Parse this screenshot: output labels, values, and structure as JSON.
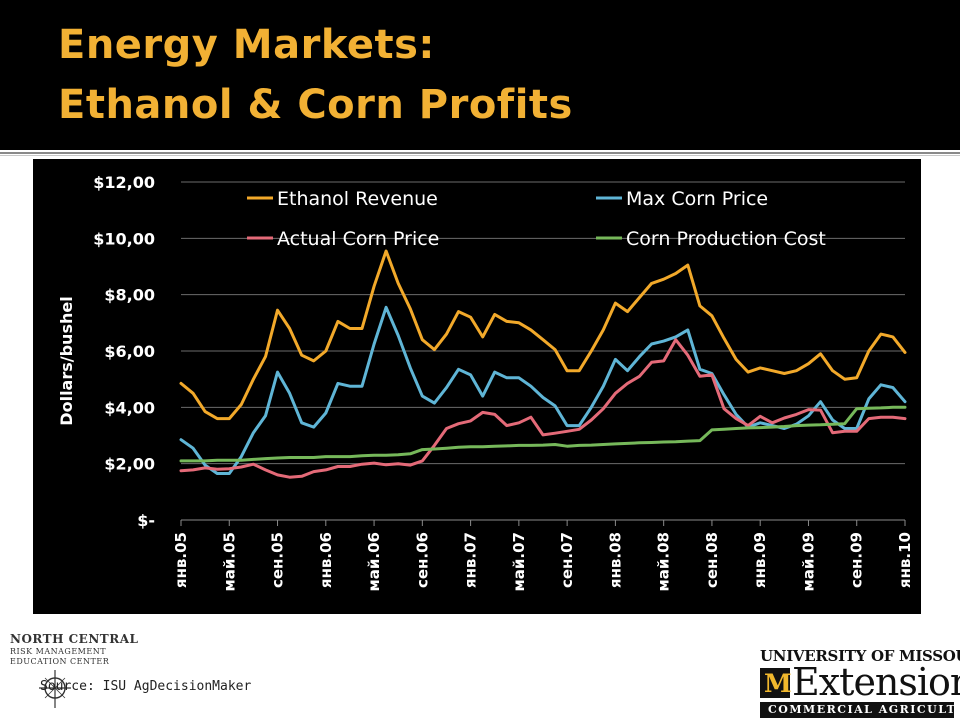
{
  "slide": {
    "title_line1": "Energy Markets:",
    "title_line2": "Ethanol & Corn Profits",
    "source": "Source: ISU AgDecisionMaker",
    "colors": {
      "title": "#f2b134",
      "header_bg": "#000000",
      "plot_bg": "#000000"
    }
  },
  "logos": {
    "ncrme": {
      "line1": "NORTH CENTRAL",
      "line2": "RISK MANAGEMENT",
      "line3": "EDUCATION CENTER"
    },
    "mu": {
      "name": "UNIVERSITY OF MISSOURI",
      "mark": "M",
      "word": "Extension",
      "bar": "COMMERCIAL AGRICULTURE"
    }
  },
  "chart_data": {
    "type": "line",
    "ylabel": "Dollars/bushel",
    "xlabel": "",
    "ylim": [
      0,
      12
    ],
    "yticks": [
      0,
      2,
      4,
      6,
      8,
      10,
      12
    ],
    "ytick_labels": [
      "$-",
      "$2,00",
      "$4,00",
      "$6,00",
      "$8,00",
      "$10,00",
      "$12,00"
    ],
    "x": [
      "янв.05",
      "фев.05",
      "мар.05",
      "апр.05",
      "май.05",
      "июн.05",
      "июл.05",
      "авг.05",
      "сен.05",
      "окт.05",
      "ноя.05",
      "дек.05",
      "янв.06",
      "фев.06",
      "мар.06",
      "апр.06",
      "май.06",
      "июн.06",
      "июл.06",
      "авг.06",
      "сен.06",
      "окт.06",
      "ноя.06",
      "дек.06",
      "янв.07",
      "фев.07",
      "мар.07",
      "апр.07",
      "май.07",
      "июн.07",
      "июл.07",
      "авг.07",
      "сен.07",
      "окт.07",
      "ноя.07",
      "дек.07",
      "янв.08",
      "фев.08",
      "мар.08",
      "апр.08",
      "май.08",
      "июн.08",
      "июл.08",
      "авг.08",
      "сен.08",
      "окт.08",
      "ноя.08",
      "дек.08",
      "янв.09",
      "фев.09",
      "мар.09",
      "апр.09",
      "май.09",
      "июн.09",
      "июл.09",
      "авг.09",
      "сен.09",
      "окт.09",
      "ноя.09",
      "дек.09",
      "янв.10"
    ],
    "xtick_labels": [
      "янв.05",
      "май.05",
      "сен.05",
      "янв.06",
      "май.06",
      "сен.06",
      "янв.07",
      "май.07",
      "сен.07",
      "янв.08",
      "май.08",
      "сен.08",
      "янв.09",
      "май.09",
      "сен.09",
      "янв.10"
    ],
    "legend_position": "top",
    "grid": true,
    "series": [
      {
        "name": "Ethanol Revenue",
        "color": "#f2a92a",
        "values": [
          4.85,
          4.5,
          3.85,
          3.6,
          3.6,
          4.1,
          5.0,
          5.8,
          7.45,
          6.8,
          5.85,
          5.65,
          6.0,
          7.05,
          6.8,
          6.8,
          8.3,
          9.55,
          8.4,
          7.5,
          6.4,
          6.05,
          6.6,
          7.4,
          7.2,
          6.5,
          7.3,
          7.05,
          7.0,
          6.75,
          6.4,
          6.05,
          5.3,
          5.3,
          6.0,
          6.75,
          7.7,
          7.4,
          7.9,
          8.4,
          8.55,
          8.75,
          9.05,
          7.6,
          7.25,
          6.45,
          5.7,
          5.25,
          5.4,
          5.3,
          5.2,
          5.3,
          5.55,
          5.9,
          5.3,
          5.0,
          5.05,
          6.0,
          6.6,
          6.5,
          5.95
        ]
      },
      {
        "name": "Max Corn Price",
        "color": "#5fb5d6",
        "values": [
          2.85,
          2.55,
          1.95,
          1.65,
          1.65,
          2.25,
          3.1,
          3.7,
          5.25,
          4.5,
          3.45,
          3.3,
          3.8,
          4.85,
          4.75,
          4.75,
          6.25,
          7.55,
          6.55,
          5.4,
          4.4,
          4.15,
          4.7,
          5.35,
          5.15,
          4.4,
          5.25,
          5.05,
          5.05,
          4.75,
          4.35,
          4.05,
          3.35,
          3.35,
          4.0,
          4.75,
          5.7,
          5.3,
          5.8,
          6.25,
          6.35,
          6.5,
          6.75,
          5.35,
          5.2,
          4.45,
          3.75,
          3.3,
          3.45,
          3.35,
          3.25,
          3.4,
          3.7,
          4.2,
          3.55,
          3.25,
          3.25,
          4.3,
          4.8,
          4.7,
          4.2
        ]
      },
      {
        "name": "Actual Corn Price",
        "color": "#e46a78",
        "values": [
          1.75,
          1.78,
          1.85,
          1.8,
          1.82,
          1.88,
          1.98,
          1.78,
          1.6,
          1.52,
          1.55,
          1.72,
          1.78,
          1.9,
          1.9,
          1.98,
          2.02,
          1.96,
          2.0,
          1.95,
          2.1,
          2.65,
          3.25,
          3.42,
          3.52,
          3.82,
          3.75,
          3.35,
          3.45,
          3.65,
          3.02,
          3.08,
          3.15,
          3.22,
          3.55,
          3.95,
          4.5,
          4.85,
          5.1,
          5.6,
          5.65,
          6.4,
          5.85,
          5.1,
          5.15,
          3.95,
          3.6,
          3.35,
          3.68,
          3.45,
          3.62,
          3.75,
          3.92,
          3.9,
          3.1,
          3.15,
          3.15,
          3.6,
          3.65,
          3.65,
          3.6
        ]
      },
      {
        "name": "Corn Production Cost",
        "color": "#76b85a",
        "values": [
          2.1,
          2.1,
          2.1,
          2.12,
          2.12,
          2.12,
          2.15,
          2.18,
          2.2,
          2.22,
          2.22,
          2.22,
          2.25,
          2.25,
          2.25,
          2.28,
          2.3,
          2.3,
          2.32,
          2.35,
          2.5,
          2.52,
          2.55,
          2.58,
          2.6,
          2.6,
          2.62,
          2.63,
          2.65,
          2.65,
          2.66,
          2.68,
          2.62,
          2.65,
          2.66,
          2.68,
          2.7,
          2.72,
          2.74,
          2.75,
          2.77,
          2.78,
          2.8,
          2.82,
          3.2,
          3.22,
          3.25,
          3.27,
          3.28,
          3.3,
          3.32,
          3.35,
          3.37,
          3.38,
          3.4,
          3.42,
          3.95,
          3.97,
          3.98,
          4.0,
          4.0
        ]
      }
    ]
  }
}
